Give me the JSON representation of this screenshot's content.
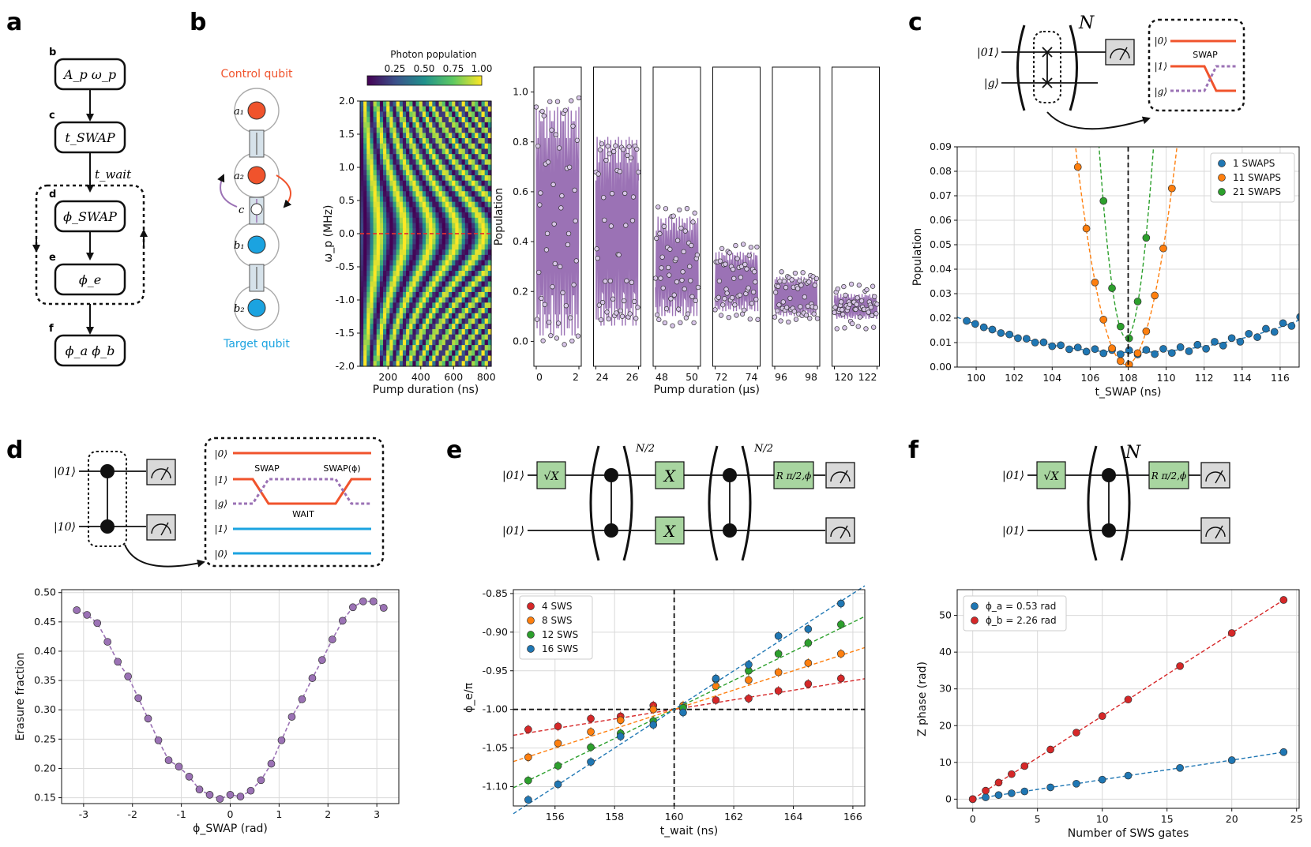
{
  "panel_labels": {
    "a": "a",
    "b": "b",
    "c": "c",
    "d": "d",
    "e": "e",
    "f": "f"
  },
  "flowchart": {
    "nodes": [
      {
        "tag": "b",
        "text": "A_p   ω_p"
      },
      {
        "tag": "c",
        "text": "t_SWAP"
      },
      {
        "tag": "d",
        "text": "ϕ_SWAP"
      },
      {
        "tag": "e",
        "text": "ϕ_e"
      },
      {
        "tag": "f",
        "text": "ϕ_a   ϕ_b"
      }
    ],
    "wait_label": "t_wait"
  },
  "device": {
    "control_label": "Control qubit",
    "target_label": "Target qubit",
    "nodes": [
      "a₁",
      "a₂",
      "c",
      "b₁",
      "b₂"
    ],
    "colors": {
      "control": "#f0532c",
      "target": "#1ba3e0",
      "coupler": "#9b72b5"
    }
  },
  "colorbar": {
    "title": "Photon population",
    "ticks": [
      "0.25",
      "0.50",
      "0.75",
      "1.00"
    ]
  },
  "circuits": {
    "c": {
      "in_top": "|01⟩",
      "in_bot": "|g⟩",
      "exp": "N",
      "levels": [
        "|0⟩",
        "|1⟩",
        "|g⟩"
      ],
      "swap": "SWAP"
    },
    "d": {
      "in_top": "|01⟩",
      "in_bot": "|10⟩",
      "levels": [
        "|0⟩",
        "|1⟩",
        "|g⟩",
        "|1⟩",
        "|0⟩"
      ],
      "swap": "SWAP",
      "swap_phi": "SWAP(ϕ)",
      "wait": "WAIT"
    },
    "e": {
      "in_top": "|01⟩",
      "in_bot": "|01⟩",
      "sqx": "√X",
      "x": "X",
      "exp": "N/2",
      "r": "R π/2,ϕ"
    },
    "f": {
      "in_top": "|01⟩",
      "in_bot": "|01⟩",
      "sqx": "√X",
      "exp": "N",
      "r": "R π/2,ϕ"
    }
  },
  "chart_data": [
    {
      "id": "b-heatmap",
      "type": "heatmap",
      "xlabel": "Pump duration (ns)",
      "ylabel": "ω_p (MHz)",
      "xlim": [
        30,
        830
      ],
      "ylim": [
        -2.0,
        2.0
      ],
      "xticks": [
        200,
        400,
        600,
        800
      ],
      "yticks": [
        -2.0,
        -1.5,
        -1.0,
        -0.5,
        0.0,
        0.5,
        1.0,
        1.5,
        2.0
      ],
      "colorscale": "viridis",
      "zlim": [
        0.1,
        1.0
      ],
      "marker_line": 0.0
    },
    {
      "id": "b-traces",
      "type": "scatter",
      "ylabel": "Population",
      "xlabel": "Pump duration (μs)",
      "ylim": [
        -0.1,
        1.1
      ],
      "yticks": [
        0.0,
        0.2,
        0.4,
        0.6,
        0.8,
        1.0
      ],
      "windows": [
        {
          "range": [
            0,
            2
          ],
          "center": 0.48,
          "amplitude": 0.46
        },
        {
          "range": [
            24,
            26
          ],
          "center": 0.44,
          "amplitude": 0.38
        },
        {
          "range": [
            48,
            50
          ],
          "center": 0.3,
          "amplitude": 0.2
        },
        {
          "range": [
            72,
            74
          ],
          "center": 0.24,
          "amplitude": 0.12
        },
        {
          "range": [
            96,
            98
          ],
          "center": 0.18,
          "amplitude": 0.08
        },
        {
          "range": [
            120,
            122
          ],
          "center": 0.14,
          "amplitude": 0.05
        }
      ],
      "color": "#9b72b5"
    },
    {
      "id": "c-plot",
      "type": "scatter",
      "xlabel": "t_SWAP (ns)",
      "ylabel": "Population",
      "xlim": [
        99,
        117
      ],
      "ylim": [
        0,
        0.09
      ],
      "xticks": [
        100,
        102,
        104,
        106,
        108,
        110,
        112,
        114,
        116
      ],
      "yticks": [
        0.0,
        0.01,
        0.02,
        0.03,
        0.04,
        0.05,
        0.06,
        0.07,
        0.08,
        0.09
      ],
      "vline": 108,
      "series": [
        {
          "name": "1 SWAPS",
          "color": "#1f77b4",
          "curvature": 0.00017,
          "center": 108.2,
          "offset": 0.006
        },
        {
          "name": "11 SWAPS",
          "color": "#ff7f0e",
          "curvature": 0.0125,
          "center": 107.9,
          "offset": 0.001
        },
        {
          "name": "21 SWAPS",
          "color": "#2ca02c",
          "curvature": 0.038,
          "center": 107.9,
          "offset": 0.012
        }
      ]
    },
    {
      "id": "d-plot",
      "type": "line",
      "xlabel": "ϕ_SWAP (rad)",
      "ylabel": "Erasure fraction",
      "xlim": [
        -3.45,
        3.45
      ],
      "ylim": [
        0.14,
        0.505
      ],
      "xticks": [
        -3,
        -2,
        -1,
        0,
        1,
        2,
        3
      ],
      "yticks": [
        0.15,
        0.2,
        0.25,
        0.3,
        0.35,
        0.4,
        0.45,
        0.5
      ],
      "color": "#9b72b5",
      "x": [
        -3.14,
        -2.93,
        -2.72,
        -2.51,
        -2.3,
        -2.09,
        -1.88,
        -1.68,
        -1.47,
        -1.26,
        -1.05,
        -0.84,
        -0.63,
        -0.42,
        -0.21,
        0.0,
        0.21,
        0.42,
        0.63,
        0.84,
        1.05,
        1.26,
        1.47,
        1.68,
        1.88,
        2.09,
        2.3,
        2.51,
        2.72,
        2.93,
        3.14
      ],
      "y": [
        0.47,
        0.462,
        0.448,
        0.416,
        0.382,
        0.357,
        0.32,
        0.285,
        0.248,
        0.214,
        0.203,
        0.186,
        0.164,
        0.155,
        0.148,
        0.155,
        0.152,
        0.162,
        0.18,
        0.208,
        0.248,
        0.288,
        0.318,
        0.354,
        0.385,
        0.42,
        0.452,
        0.475,
        0.485,
        0.485,
        0.474
      ]
    },
    {
      "id": "e-plot",
      "type": "scatter",
      "xlabel": "t_wait (ns)",
      "ylabel": "ϕ_e/π",
      "xlim": [
        154.6,
        166.4
      ],
      "ylim": [
        -1.125,
        -0.845
      ],
      "xticks": [
        156,
        158,
        160,
        162,
        164,
        166
      ],
      "yticks": [
        -1.1,
        -1.05,
        -1.0,
        -0.95,
        -0.9,
        -0.85
      ],
      "hline": -1.0,
      "vline": 160,
      "x": [
        155.1,
        156.1,
        157.2,
        158.2,
        159.3,
        160.3,
        161.4,
        162.5,
        163.5,
        164.5,
        165.6
      ],
      "series": [
        {
          "name": "4 SWS",
          "color": "#d62728",
          "slope": 0.0062,
          "y": [
            -1.026,
            -1.022,
            -1.012,
            -1.009,
            -0.995,
            -0.996,
            -0.988,
            -0.986,
            -0.976,
            -0.967,
            -0.96
          ]
        },
        {
          "name": "8 SWS",
          "color": "#ff7f0e",
          "slope": 0.0125,
          "y": [
            -1.062,
            -1.044,
            -1.029,
            -1.014,
            -1.0,
            -0.995,
            -0.97,
            -0.962,
            -0.952,
            -0.94,
            -0.928
          ]
        },
        {
          "name": "12 SWS",
          "color": "#2ca02c",
          "slope": 0.0188,
          "y": [
            -1.092,
            -1.073,
            -1.049,
            -1.031,
            -1.015,
            -0.998,
            -0.961,
            -0.95,
            -0.928,
            -0.914,
            -0.89
          ]
        },
        {
          "name": "16 SWS",
          "color": "#1f77b4",
          "slope": 0.025,
          "y": [
            -1.117,
            -1.097,
            -1.068,
            -1.035,
            -1.02,
            -1.004,
            -0.96,
            -0.942,
            -0.905,
            -0.896,
            -0.863
          ]
        }
      ]
    },
    {
      "id": "f-plot",
      "type": "scatter",
      "xlabel": "Number of SWS gates",
      "ylabel": "Z phase (rad)",
      "xlim": [
        -1.2,
        25.2
      ],
      "ylim": [
        -2.5,
        57
      ],
      "xticks": [
        0,
        5,
        10,
        15,
        20,
        25
      ],
      "yticks": [
        0,
        10,
        20,
        30,
        40,
        50
      ],
      "x": [
        0,
        1,
        2,
        3,
        4,
        6,
        8,
        10,
        12,
        16,
        20,
        24
      ],
      "series": [
        {
          "name": "ϕ_a = 0.53 rad",
          "color": "#1f77b4",
          "y": [
            0,
            0.5,
            1.1,
            1.6,
            2.1,
            3.2,
            4.2,
            5.3,
            6.4,
            8.5,
            10.6,
            12.8
          ]
        },
        {
          "name": "ϕ_b = 2.26 rad",
          "color": "#d62728",
          "y": [
            0,
            2.3,
            4.5,
            6.8,
            9.0,
            13.5,
            18.1,
            22.6,
            27.1,
            36.2,
            45.2,
            54.2
          ]
        }
      ]
    }
  ]
}
